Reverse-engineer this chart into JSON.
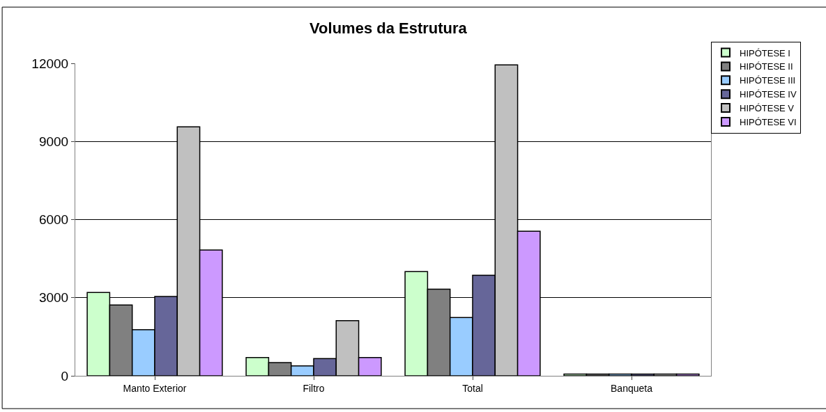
{
  "chart_data": {
    "type": "bar",
    "title": "Volumes da Estrutura",
    "categories": [
      "Manto Exterior",
      "Filtro",
      "Total",
      "Banqueta"
    ],
    "series": [
      {
        "name": "HIPÓTESE I",
        "color": "#ccffcc",
        "values": [
          3200,
          700,
          4000,
          70
        ]
      },
      {
        "name": "HIPÓTESE II",
        "color": "#808080",
        "values": [
          2720,
          510,
          3330,
          70
        ]
      },
      {
        "name": "HIPÓTESE III",
        "color": "#99ccff",
        "values": [
          1770,
          380,
          2240,
          70
        ]
      },
      {
        "name": "HIPÓTESE IV",
        "color": "#666699",
        "values": [
          3050,
          660,
          3860,
          70
        ]
      },
      {
        "name": "HIPÓTESE V",
        "color": "#c0c0c0",
        "values": [
          9560,
          2120,
          11940,
          70
        ]
      },
      {
        "name": "HIPÓTESE VI",
        "color": "#cc99ff",
        "values": [
          4830,
          700,
          5550,
          70
        ]
      }
    ],
    "ylim": [
      0,
      12000
    ],
    "yticks": [
      0,
      3000,
      6000,
      9000,
      12000
    ],
    "grid": "y",
    "legend": "top right"
  }
}
